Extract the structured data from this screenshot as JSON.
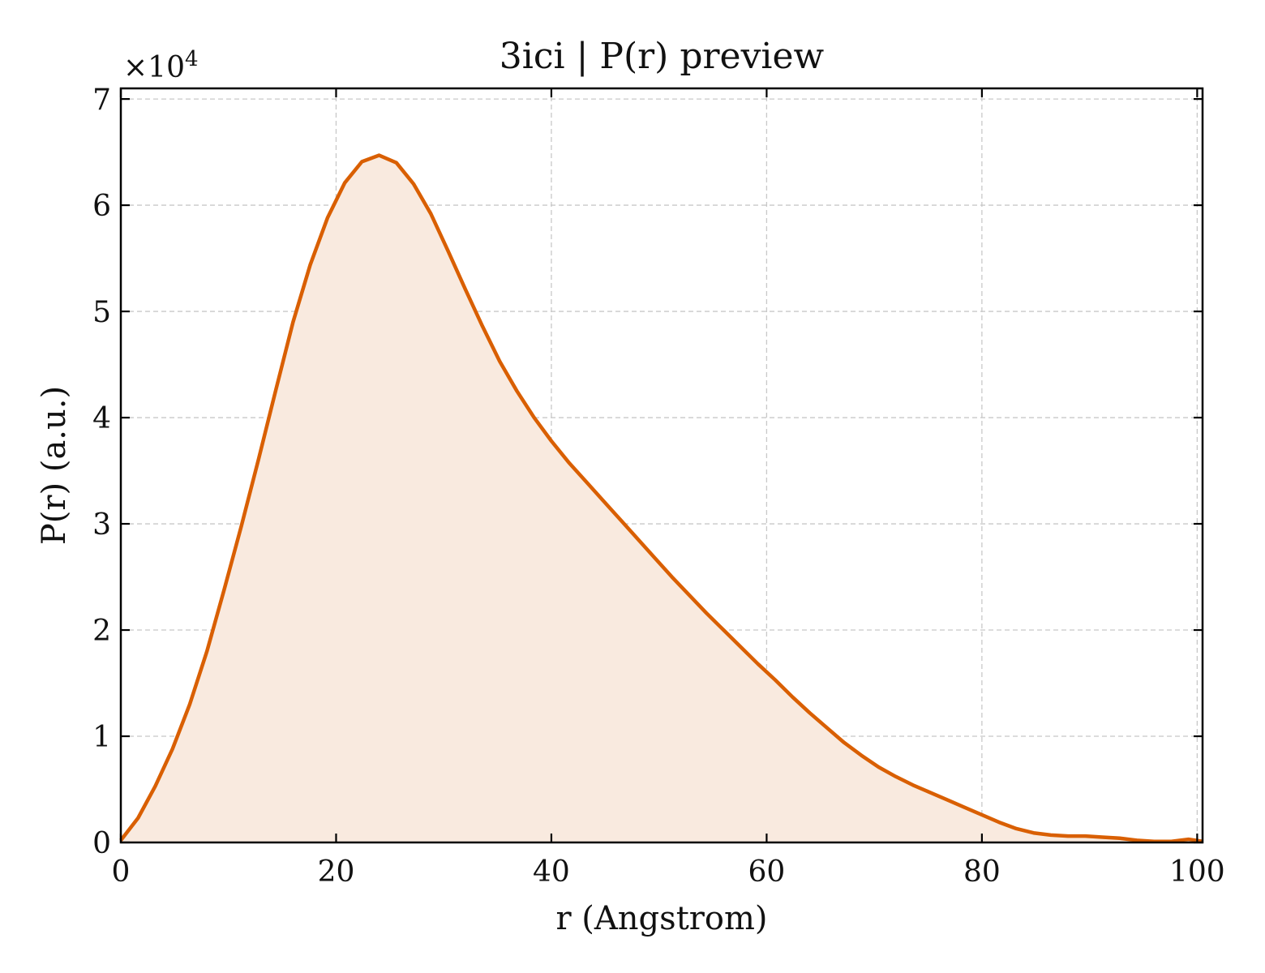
{
  "chart_data": {
    "type": "area",
    "title": "3ici | P(r) preview",
    "xlabel": "r (Angstrom)",
    "ylabel": "P(r) (a.u.)",
    "y_multiplier_base": "×10",
    "y_multiplier_exp": "4",
    "xlim": [
      0,
      100.5
    ],
    "ylim": [
      0,
      7.1
    ],
    "xticks": [
      0,
      20,
      40,
      60,
      80,
      100
    ],
    "yticks": [
      0,
      1,
      2,
      3,
      4,
      5,
      6,
      7
    ],
    "grid": true,
    "line_color": "#d95f02",
    "fill_color": "#f9eadf",
    "series": [
      {
        "x": [
          0,
          1.6,
          3.2,
          4.8,
          6.4,
          8.0,
          9.6,
          11.2,
          12.8,
          14.4,
          16.0,
          17.6,
          19.2,
          20.8,
          22.4,
          24.0,
          25.6,
          27.2,
          28.8,
          30.4,
          32.0,
          33.6,
          35.2,
          36.8,
          38.4,
          40.0,
          41.6,
          43.2,
          44.8,
          46.4,
          48.0,
          49.6,
          51.2,
          52.8,
          54.4,
          56.0,
          57.6,
          59.2,
          60.8,
          62.4,
          64.0,
          65.6,
          67.2,
          68.8,
          70.4,
          72.0,
          73.6,
          75.2,
          76.8,
          78.4,
          80.0,
          81.6,
          83.2,
          84.8,
          86.4,
          88.0,
          89.6,
          91.2,
          92.8,
          94.4,
          96.0,
          97.6,
          99.2,
          100.5
        ],
        "y": [
          0.02,
          0.23,
          0.53,
          0.88,
          1.3,
          1.8,
          2.38,
          2.98,
          3.61,
          4.26,
          4.9,
          5.44,
          5.88,
          6.21,
          6.41,
          6.47,
          6.4,
          6.2,
          5.92,
          5.57,
          5.21,
          4.86,
          4.53,
          4.25,
          4.0,
          3.78,
          3.58,
          3.4,
          3.22,
          3.04,
          2.86,
          2.68,
          2.5,
          2.33,
          2.16,
          2.0,
          1.84,
          1.68,
          1.53,
          1.37,
          1.22,
          1.08,
          0.94,
          0.82,
          0.71,
          0.62,
          0.54,
          0.47,
          0.4,
          0.33,
          0.26,
          0.19,
          0.13,
          0.09,
          0.07,
          0.06,
          0.06,
          0.05,
          0.04,
          0.02,
          0.01,
          0.01,
          0.03,
          0.01
        ]
      }
    ]
  }
}
